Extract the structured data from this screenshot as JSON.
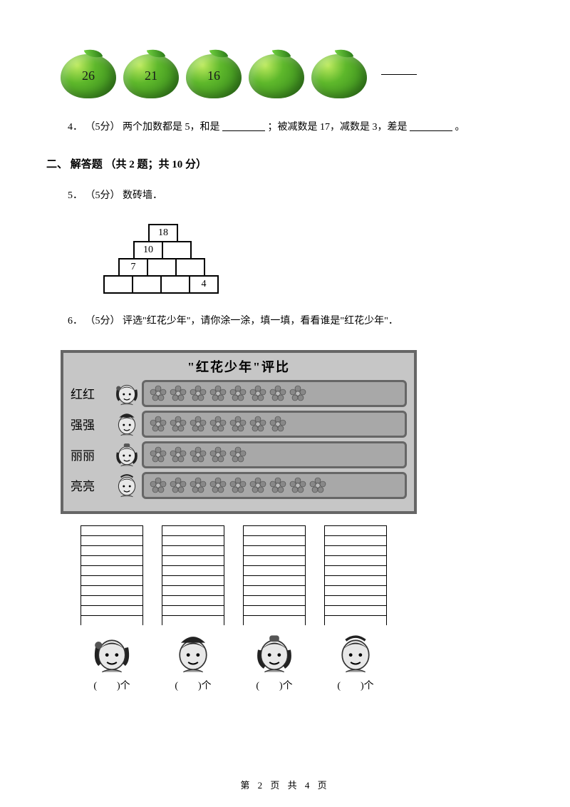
{
  "apples": {
    "values": [
      "26",
      "21",
      "16",
      "",
      ""
    ],
    "colors": {
      "light": "#b8e85a",
      "mid": "#5eb82b",
      "dark": "#2e7d1a"
    }
  },
  "q4": {
    "number": "4．",
    "points": "（5分）",
    "text1": " 两个加数都是 5，和是",
    "text2": "；被减数是 17，减数是 3，差是",
    "period": "。"
  },
  "section2": {
    "title": "二、 解答题 （共 2 题；共 10 分）"
  },
  "q5": {
    "number": "5．",
    "points": "（5分）",
    "text": " 数砖墙．",
    "bricks": {
      "rows": [
        [
          "18"
        ],
        [
          "10",
          ""
        ],
        [
          "7",
          "",
          ""
        ],
        [
          "",
          "",
          "",
          "4"
        ]
      ]
    }
  },
  "q6": {
    "number": "6．",
    "points": "（5分）",
    "text": " 评选\"红花少年\"，请你涂一涂，填一填，看看谁是\"红花少年\"．",
    "chart_title": "\"红花少年\"评比",
    "rows": [
      {
        "name": "红红",
        "flowers": 8
      },
      {
        "name": "强强",
        "flowers": 7
      },
      {
        "name": "丽丽",
        "flowers": 5
      },
      {
        "name": "亮亮",
        "flowers": 9
      }
    ],
    "fill_cells_per_column": 10,
    "fill_label_suffix": "个"
  },
  "footer": {
    "text": "第 2 页 共 4 页"
  }
}
